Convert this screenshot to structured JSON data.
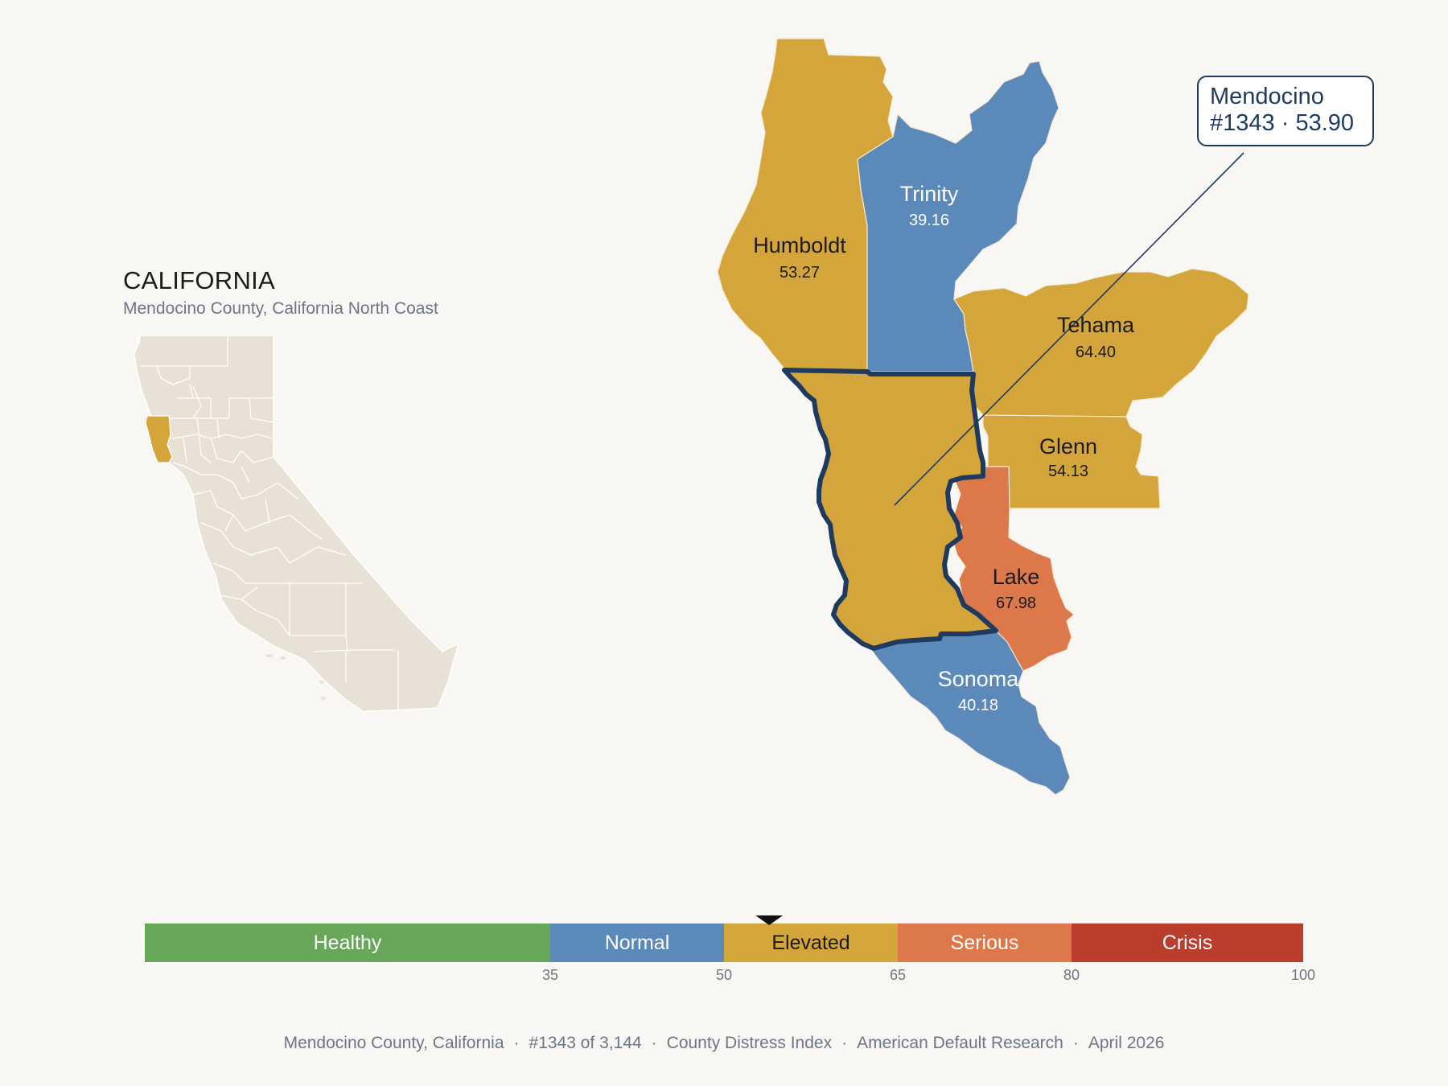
{
  "header": {
    "title": "CALIFORNIA",
    "subtitle": "Mendocino County, California North Coast"
  },
  "focus": {
    "name": "Mendocino",
    "rank": "#1343",
    "score": "53.90",
    "sep": "·"
  },
  "counties": [
    {
      "name": "Humboldt",
      "value": "53.27",
      "category": "Elevated"
    },
    {
      "name": "Trinity",
      "value": "39.16",
      "category": "Normal"
    },
    {
      "name": "Tehama",
      "value": "64.40",
      "category": "Elevated"
    },
    {
      "name": "Glenn",
      "value": "54.13",
      "category": "Elevated"
    },
    {
      "name": "Lake",
      "value": "67.98",
      "category": "Serious"
    },
    {
      "name": "Sonoma",
      "value": "40.18",
      "category": "Normal"
    },
    {
      "name": "Mendocino",
      "value": "53.90",
      "category": "Elevated"
    }
  ],
  "colors": {
    "Healthy": "#68a75a",
    "Normal": "#5b89b9",
    "Elevated": "#d4a53b",
    "Serious": "#dd784b",
    "Crisis": "#bb3e2d",
    "outline": "#1e3a5f",
    "inset_land": "#e8e2d6",
    "background": "#f9f7f3"
  },
  "scale": {
    "min": 0,
    "max": 100,
    "marker_value": 53.9,
    "bands": [
      {
        "label": "Healthy",
        "from": 0,
        "to": 35
      },
      {
        "label": "Normal",
        "from": 35,
        "to": 50
      },
      {
        "label": "Elevated",
        "from": 50,
        "to": 65
      },
      {
        "label": "Serious",
        "from": 65,
        "to": 80
      },
      {
        "label": "Crisis",
        "from": 80,
        "to": 100
      }
    ],
    "ticks": [
      "35",
      "50",
      "65",
      "80",
      "100"
    ]
  },
  "footer": {
    "county": "Mendocino County, California",
    "rank": "#1343 of 3,144",
    "index": "County Distress Index",
    "source": "American Default Research",
    "date": "April 2026",
    "sep": "·"
  }
}
